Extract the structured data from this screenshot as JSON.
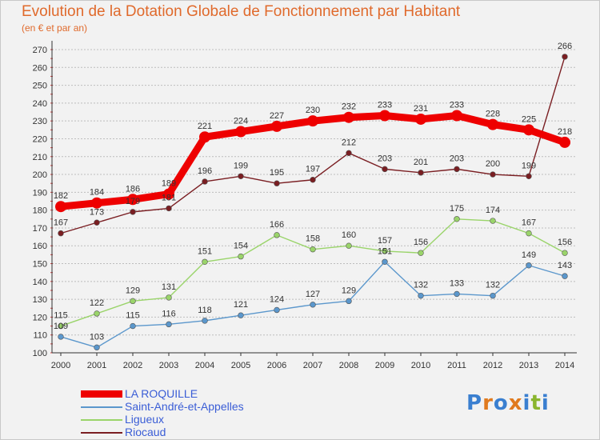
{
  "title": "Evolution de la Dotation Globale de Fonctionnement par Habitant",
  "subtitle": "(en € et par an)",
  "logo": {
    "text": "Proxiti",
    "colors": [
      "#3a7fd0",
      "#e07a1e",
      "#3a7fd0",
      "#e07a1e",
      "#3a7fd0",
      "#8ab52e",
      "#3a7fd0"
    ]
  },
  "chart_data": {
    "type": "line",
    "title": "Evolution de la Dotation Globale de Fonctionnement par Habitant",
    "subtitle": "(en € et par an)",
    "x": [
      "2000",
      "2001",
      "2002",
      "2003",
      "2004",
      "2005",
      "2006",
      "2007",
      "2008",
      "2009",
      "2010",
      "2011",
      "2012",
      "2013",
      "2014"
    ],
    "ylim": [
      100,
      270
    ],
    "yticks": [
      100,
      110,
      120,
      130,
      140,
      150,
      160,
      170,
      180,
      190,
      200,
      210,
      220,
      230,
      240,
      250,
      260,
      270
    ],
    "grid": "horizontal dashed",
    "legend_position": "bottom-left",
    "series": [
      {
        "name": "LA ROQUILLE",
        "color": "#ee0000",
        "values": [
          182,
          184,
          186,
          189,
          221,
          224,
          227,
          230,
          232,
          233,
          231,
          233,
          228,
          225,
          218
        ]
      },
      {
        "name": "Saint-André-et-Appelles",
        "color": "#5b97cc",
        "values": [
          109,
          103,
          115,
          116,
          118,
          121,
          124,
          127,
          129,
          151,
          132,
          133,
          132,
          149,
          143
        ]
      },
      {
        "name": "Ligueux",
        "color": "#9ad46a",
        "values": [
          115,
          122,
          129,
          131,
          151,
          154,
          166,
          158,
          160,
          157,
          156,
          175,
          174,
          167,
          156
        ]
      },
      {
        "name": "Riocaud",
        "color": "#7a1e22",
        "values": [
          167,
          173,
          179,
          181,
          196,
          199,
          195,
          197,
          212,
          203,
          201,
          203,
          200,
          199,
          266
        ]
      }
    ]
  }
}
